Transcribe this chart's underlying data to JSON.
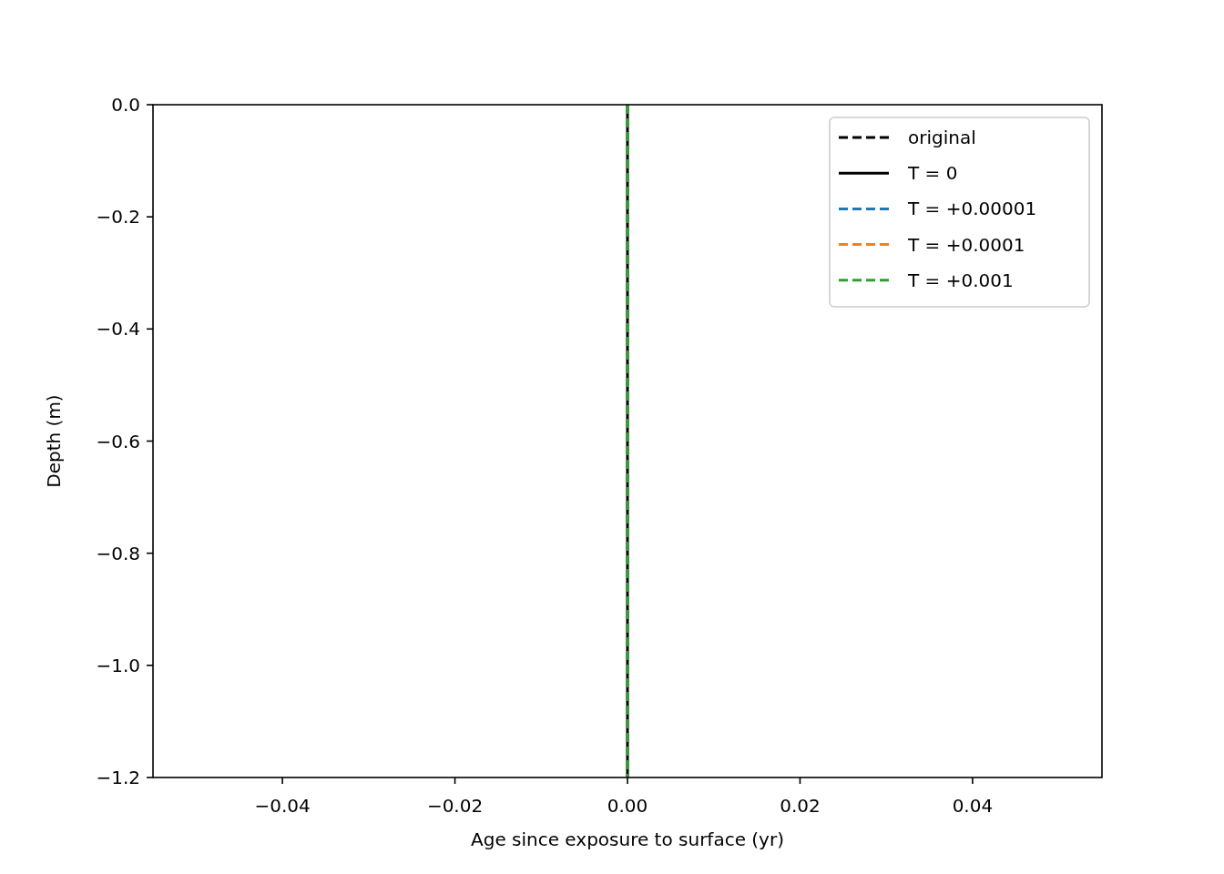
{
  "chart_data": {
    "type": "line",
    "xlabel": "Age since exposure to surface (yr)",
    "ylabel": "Depth (m)",
    "xlim": [
      -0.055,
      0.055
    ],
    "ylim": [
      -1.2,
      0
    ],
    "xticks": [
      {
        "value": -0.04,
        "label": "−0.04"
      },
      {
        "value": -0.02,
        "label": "−0.02"
      },
      {
        "value": 0,
        "label": "0.00"
      },
      {
        "value": 0.02,
        "label": "0.02"
      },
      {
        "value": 0.04,
        "label": "0.04"
      }
    ],
    "yticks": [
      {
        "value": 0,
        "label": "0.0"
      },
      {
        "value": -0.2,
        "label": "−0.2"
      },
      {
        "value": -0.4,
        "label": "−0.4"
      },
      {
        "value": -0.6,
        "label": "−0.6"
      },
      {
        "value": -0.8,
        "label": "−0.8"
      },
      {
        "value": -1.0,
        "label": "−1.0"
      },
      {
        "value": -1.2,
        "label": "−1.2"
      }
    ],
    "legend": "top right",
    "grid": false,
    "marker": "none",
    "x": [
      0,
      0
    ],
    "series": [
      {
        "name": "original",
        "color": "#000000",
        "line_style": "dashed",
        "values": [
          null,
          null
        ]
      },
      {
        "name": "T = 0",
        "color": "#000000",
        "line_style": "solid",
        "values": [
          0,
          -1.2
        ]
      },
      {
        "name": "T = +0.00001",
        "color": "#1f77b4",
        "line_style": "dashed",
        "values": [
          null,
          null
        ]
      },
      {
        "name": "T = +0.0001",
        "color": "#ff7f0e",
        "line_style": "dashed",
        "values": [
          null,
          null
        ]
      },
      {
        "name": "T = +0.001",
        "color": "#2ca02c",
        "line_style": "dashed",
        "values": [
          0,
          -1.2
        ]
      }
    ]
  }
}
